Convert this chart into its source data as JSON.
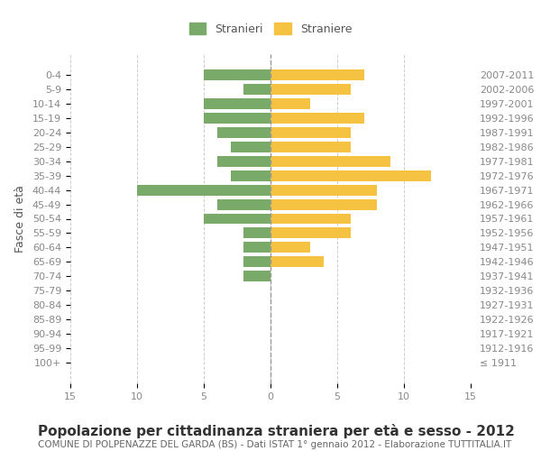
{
  "age_groups": [
    "100+",
    "95-99",
    "90-94",
    "85-89",
    "80-84",
    "75-79",
    "70-74",
    "65-69",
    "60-64",
    "55-59",
    "50-54",
    "45-49",
    "40-44",
    "35-39",
    "30-34",
    "25-29",
    "20-24",
    "15-19",
    "10-14",
    "5-9",
    "0-4"
  ],
  "birth_years": [
    "≤ 1911",
    "1912-1916",
    "1917-1921",
    "1922-1926",
    "1927-1931",
    "1932-1936",
    "1937-1941",
    "1942-1946",
    "1947-1951",
    "1952-1956",
    "1957-1961",
    "1962-1966",
    "1967-1971",
    "1972-1976",
    "1977-1981",
    "1982-1986",
    "1987-1991",
    "1992-1996",
    "1997-2001",
    "2002-2006",
    "2007-2011"
  ],
  "males": [
    0,
    0,
    0,
    0,
    0,
    0,
    2,
    2,
    2,
    2,
    5,
    4,
    10,
    3,
    4,
    3,
    4,
    5,
    5,
    2,
    5
  ],
  "females": [
    0,
    0,
    0,
    0,
    0,
    0,
    0,
    4,
    3,
    6,
    6,
    8,
    8,
    12,
    9,
    6,
    6,
    7,
    3,
    6,
    7
  ],
  "male_color": "#7aaa6a",
  "female_color": "#f5c242",
  "title": "Popolazione per cittadinanza straniera per età e sesso - 2012",
  "subtitle": "COMUNE DI POLPENAZZE DEL GARDA (BS) - Dati ISTAT 1° gennaio 2012 - Elaborazione TUTTITALIA.IT",
  "ylabel_left": "Fasce di età",
  "legend_male": "Stranieri",
  "legend_female": "Straniere",
  "xlim": 15,
  "bg_color": "#ffffff",
  "grid_color": "#cccccc",
  "bar_height": 0.75,
  "title_fontsize": 11,
  "subtitle_fontsize": 7.5,
  "tick_fontsize": 8,
  "label_fontsize": 9
}
